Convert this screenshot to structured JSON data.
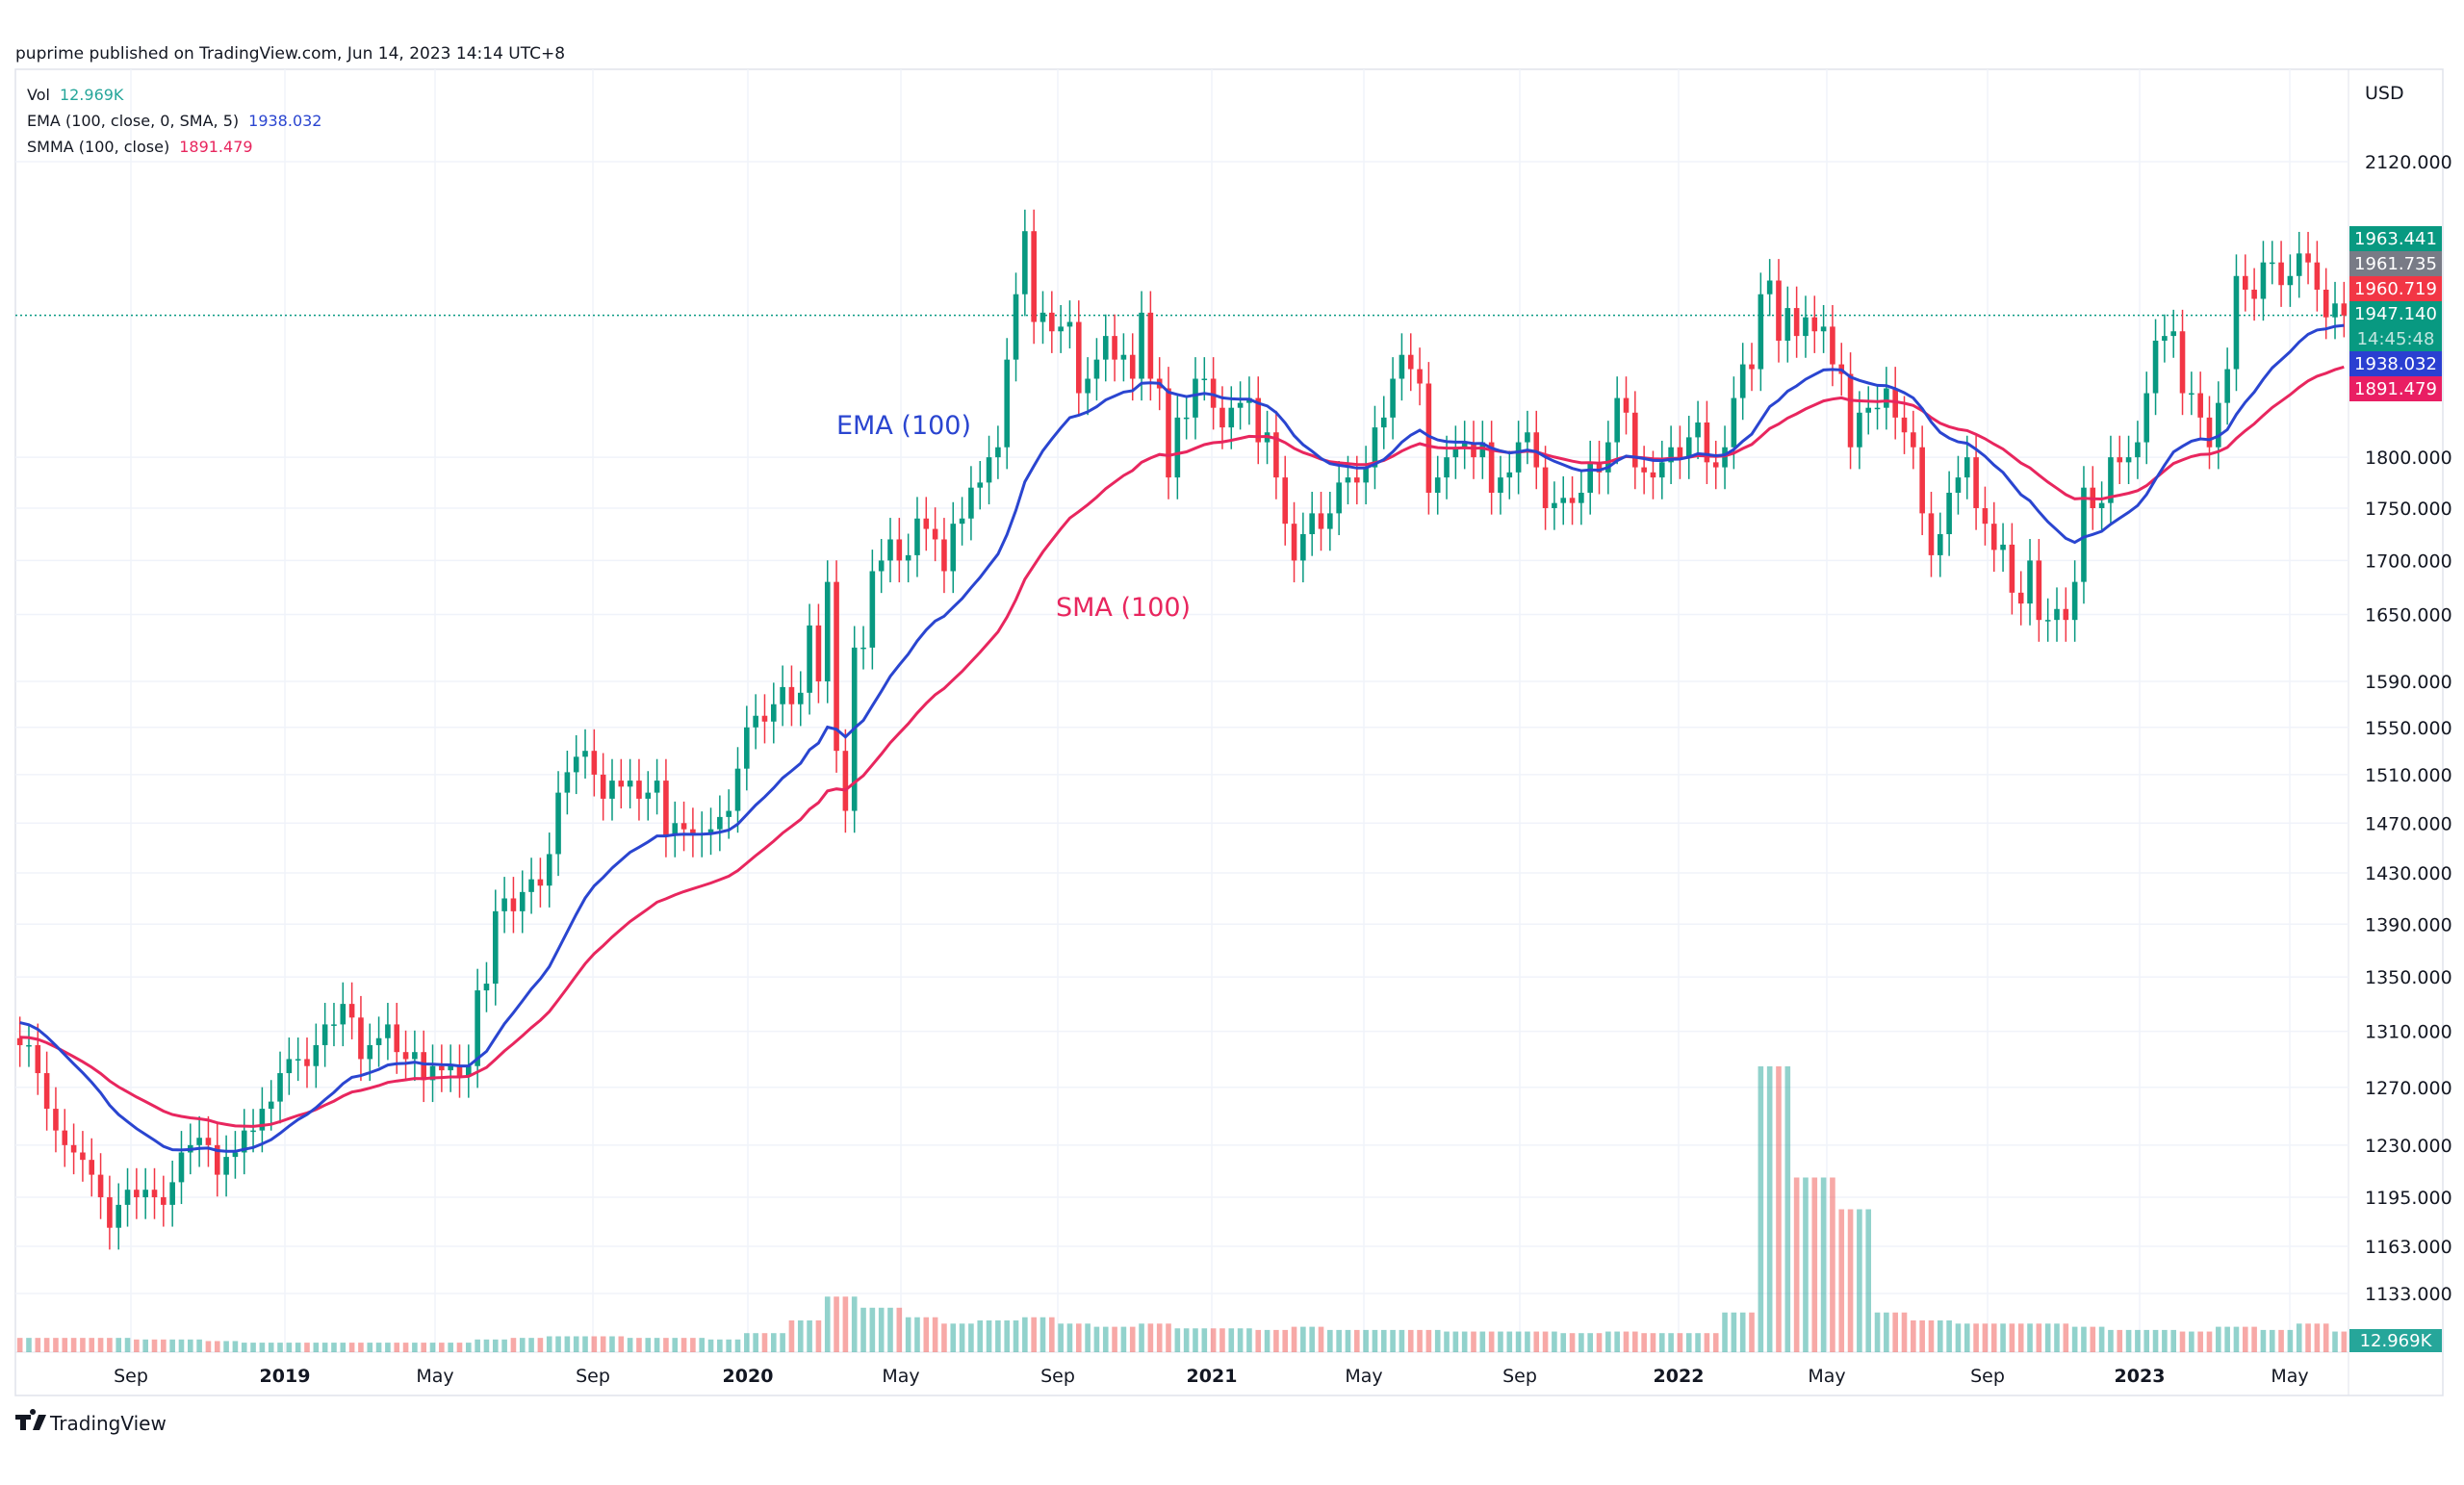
{
  "header": {
    "published": "puprime published on TradingView.com, Jun 14, 2023 14:14 UTC+8"
  },
  "legend": {
    "vol_label": "Vol",
    "vol_value": "12.969K",
    "ema_label": "EMA (100, close, 0, SMA, 5)",
    "ema_value": "1938.032",
    "smma_label": "SMMA (100, close)",
    "smma_value": "1891.479"
  },
  "annotations": {
    "ema": "EMA (100)",
    "sma": "SMA (100)"
  },
  "price_axis": {
    "currency": "USD",
    "ticks": [
      "2120.000",
      "1800.000",
      "1750.000",
      "1700.000",
      "1650.000",
      "1590.000",
      "1550.000",
      "1510.000",
      "1470.000",
      "1430.000",
      "1390.000",
      "1350.000",
      "1310.000",
      "1270.000",
      "1230.000",
      "1195.000",
      "1163.000",
      "1133.000"
    ],
    "tags": [
      {
        "text": "1963.441",
        "color": "#089981"
      },
      {
        "text": "1961.735",
        "color": "#787b86"
      },
      {
        "text": "1960.719",
        "color": "#f23645"
      },
      {
        "text": "1947.140",
        "color": "#089981"
      },
      {
        "text": "1938.032",
        "color": "#2a3fd1"
      },
      {
        "text": "1891.479",
        "color": "#e91e63"
      }
    ],
    "countdown": "14:45:48",
    "volume_tag": "12.969K"
  },
  "time_axis": {
    "labels": [
      "Sep",
      "2019",
      "May",
      "Sep",
      "2020",
      "May",
      "Sep",
      "2021",
      "May",
      "Sep",
      "2022",
      "May",
      "Sep",
      "2023",
      "May"
    ]
  },
  "footer": {
    "brand": "TradingView"
  },
  "colors": {
    "up": "#089981",
    "down": "#f23645",
    "ema": "#2a45d0",
    "smma": "#e8265e",
    "vol_up": "#26a69a",
    "vol_down": "#ef5350",
    "last_price_line": "#089981"
  },
  "chart_data": {
    "type": "candlestick",
    "scale": "log",
    "ylim": [
      1110,
      2160
    ],
    "grid": true,
    "last_price": 1947.14,
    "months": [
      "2018-06",
      "2018-07",
      "2018-08",
      "2018-09",
      "2018-10",
      "2018-11",
      "2018-12",
      "2019-01",
      "2019-02",
      "2019-03",
      "2019-04",
      "2019-05",
      "2019-06",
      "2019-07",
      "2019-08",
      "2019-09",
      "2019-10",
      "2019-11",
      "2019-12",
      "2020-01",
      "2020-02",
      "2020-03",
      "2020-04",
      "2020-05",
      "2020-06",
      "2020-07",
      "2020-08",
      "2020-09",
      "2020-10",
      "2020-11",
      "2020-12",
      "2021-01",
      "2021-02",
      "2021-03",
      "2021-04",
      "2021-05",
      "2021-06",
      "2021-07",
      "2021-08",
      "2021-09",
      "2021-10",
      "2021-11",
      "2021-12",
      "2022-01",
      "2022-02",
      "2022-03",
      "2022-04",
      "2022-05",
      "2022-06",
      "2022-07",
      "2022-08",
      "2022-09",
      "2022-10",
      "2022-11",
      "2022-12",
      "2023-01",
      "2023-02",
      "2023-03",
      "2023-04",
      "2023-05",
      "2023-06"
    ],
    "weekly_closes": [
      [
        1300,
        1300,
        1280,
        1255
      ],
      [
        1240,
        1230,
        1225,
        1220
      ],
      [
        1210,
        1195,
        1175,
        1190,
        1200
      ],
      [
        1195,
        1200,
        1195,
        1190
      ],
      [
        1205,
        1225,
        1230,
        1235
      ],
      [
        1230,
        1210,
        1222,
        1225
      ],
      [
        1240,
        1240,
        1255,
        1260,
        1280
      ],
      [
        1290,
        1290,
        1285,
        1300
      ],
      [
        1315,
        1315,
        1330,
        1320
      ],
      [
        1290,
        1300,
        1305,
        1315,
        1295
      ],
      [
        1290,
        1295,
        1275,
        1285
      ],
      [
        1282,
        1285,
        1278,
        1285
      ],
      [
        1340,
        1345,
        1400,
        1410
      ],
      [
        1400,
        1415,
        1425,
        1420
      ],
      [
        1445,
        1495,
        1512,
        1525,
        1530
      ],
      [
        1510,
        1490,
        1505,
        1500
      ],
      [
        1505,
        1490,
        1495,
        1505
      ],
      [
        1460,
        1470,
        1465,
        1460,
        1462
      ],
      [
        1465,
        1475,
        1480,
        1515
      ],
      [
        1550,
        1560,
        1555,
        1570,
        1585
      ],
      [
        1570,
        1580,
        1640,
        1590
      ],
      [
        1680,
        1530,
        1480,
        1620
      ],
      [
        1620,
        1690,
        1700,
        1720,
        1700
      ],
      [
        1705,
        1740,
        1730,
        1720
      ],
      [
        1690,
        1735,
        1740,
        1770
      ],
      [
        1775,
        1800,
        1810,
        1900,
        1970
      ],
      [
        2040,
        1940,
        1950,
        1930
      ],
      [
        1935,
        1940,
        1865,
        1880
      ],
      [
        1900,
        1925,
        1900,
        1905,
        1880
      ],
      [
        1950,
        1880,
        1870,
        1780
      ],
      [
        1840,
        1840,
        1880,
        1880
      ],
      [
        1850,
        1830,
        1850,
        1855,
        1860
      ],
      [
        1815,
        1825,
        1780,
        1735
      ],
      [
        1700,
        1725,
        1745,
        1730
      ],
      [
        1745,
        1775,
        1780,
        1775,
        1790
      ],
      [
        1830,
        1840,
        1880,
        1905
      ],
      [
        1890,
        1875,
        1765,
        1780
      ],
      [
        1800,
        1810,
        1815,
        1800,
        1815
      ],
      [
        1765,
        1780,
        1785,
        1815
      ],
      [
        1825,
        1790,
        1750,
        1755
      ],
      [
        1760,
        1755,
        1765,
        1795,
        1785
      ],
      [
        1815,
        1860,
        1845,
        1790
      ],
      [
        1785,
        1780,
        1795,
        1810
      ],
      [
        1800,
        1820,
        1835,
        1795,
        1790
      ],
      [
        1810,
        1860,
        1895,
        1890
      ],
      [
        1970,
        1985,
        1920,
        1955
      ],
      [
        1925,
        1945,
        1930,
        1935,
        1895
      ],
      [
        1885,
        1810,
        1845,
        1850
      ],
      [
        1850,
        1870,
        1840,
        1825
      ],
      [
        1810,
        1745,
        1705,
        1725,
        1765
      ],
      [
        1780,
        1800,
        1750,
        1735
      ],
      [
        1710,
        1715,
        1670,
        1660
      ],
      [
        1700,
        1645,
        1645,
        1655,
        1645
      ],
      [
        1680,
        1770,
        1750,
        1755
      ],
      [
        1800,
        1795,
        1800,
        1815
      ],
      [
        1865,
        1920,
        1925,
        1930
      ],
      [
        1865,
        1865,
        1840,
        1810
      ],
      [
        1855,
        1890,
        1990,
        1975,
        1965
      ],
      [
        2005,
        2005,
        1980,
        1990
      ],
      [
        2015,
        2005,
        1975,
        1945
      ],
      [
        1960,
        1947
      ]
    ],
    "volume_k": [
      9,
      9,
      9,
      8,
      8,
      7,
      6,
      6,
      6,
      6,
      6,
      6,
      8,
      9,
      10,
      10,
      9,
      9,
      8,
      12,
      20,
      35,
      28,
      22,
      18,
      20,
      22,
      18,
      16,
      18,
      15,
      15,
      14,
      16,
      14,
      14,
      14,
      13,
      13,
      13,
      12,
      13,
      12,
      12,
      25,
      180,
      110,
      90,
      25,
      20,
      18,
      18,
      18,
      16,
      14,
      14,
      13,
      16,
      14,
      18,
      13
    ]
  }
}
